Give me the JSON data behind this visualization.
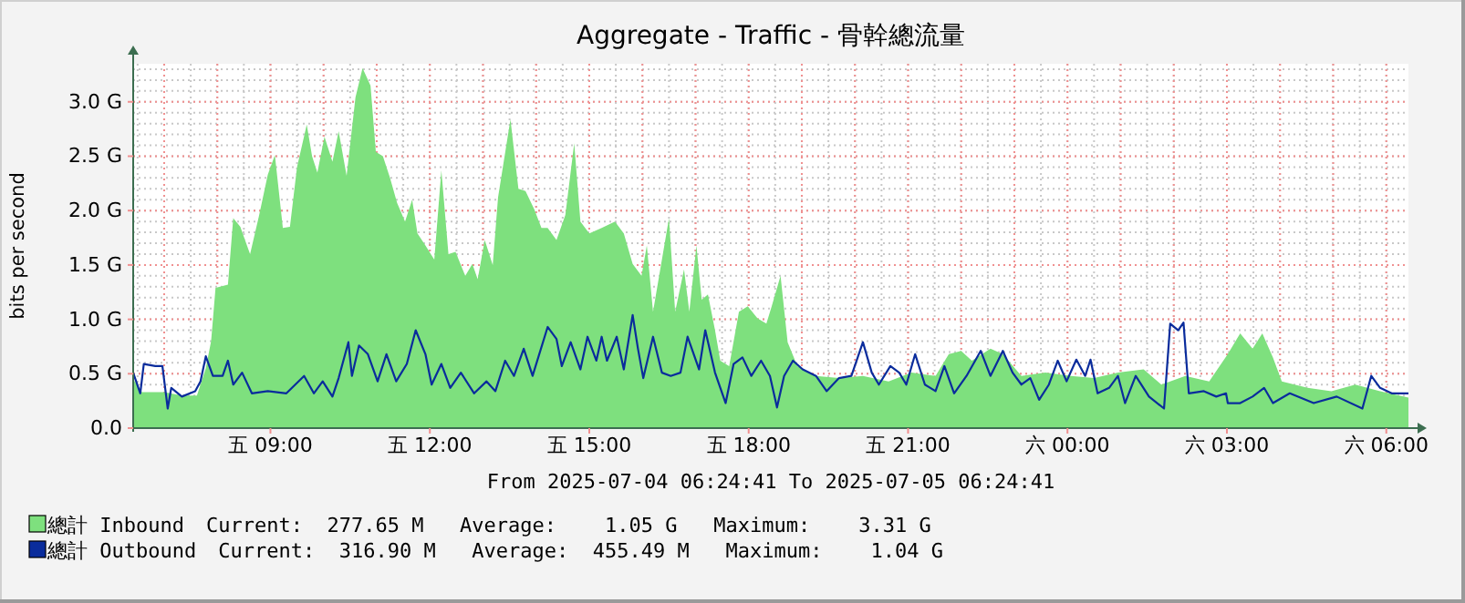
{
  "chart_data": {
    "type": "area",
    "title": "Aggregate - Traffic - 骨幹總流量",
    "ylabel": "bits per second",
    "xlim": [
      "2025-07-04T06:25",
      "2025-07-05T06:25"
    ],
    "ylim": [
      0,
      3.35
    ],
    "xticks": [
      {
        "value": "2025-07-04T09:00",
        "label": "五 09:00"
      },
      {
        "value": "2025-07-04T12:00",
        "label": "五 12:00"
      },
      {
        "value": "2025-07-04T15:00",
        "label": "五 15:00"
      },
      {
        "value": "2025-07-04T18:00",
        "label": "五 18:00"
      },
      {
        "value": "2025-07-04T21:00",
        "label": "五 21:00"
      },
      {
        "value": "2025-07-05T00:00",
        "label": "六 00:00"
      },
      {
        "value": "2025-07-05T03:00",
        "label": "六 03:00"
      },
      {
        "value": "2025-07-05T06:00",
        "label": "六 06:00"
      }
    ],
    "yticks": [
      {
        "value": 0,
        "label": "0.0"
      },
      {
        "value": 0.5,
        "label": "0.5 G"
      },
      {
        "value": 1,
        "label": "1.0 G"
      },
      {
        "value": 1.5,
        "label": "1.5 G"
      },
      {
        "value": 2,
        "label": "2.0 G"
      },
      {
        "value": 2.5,
        "label": "2.5 G"
      },
      {
        "value": 3,
        "label": "3.0 G"
      }
    ],
    "grid": true,
    "legend": "bottom",
    "annotations": [
      "From 2025-07-04 06:24:41 To 2025-07-05 06:24:41",
      "Current:  277.65 M   Average:    1.05 G   Maximum:    3.31 G",
      "Current:  316.90 M   Average:  455.49 M   Maximum:    1.04 G"
    ],
    "series": [
      {
        "name": "總計 Inbound",
        "type": "area",
        "color": "#7ee07e",
        "x": [
          "2025-07-04T06:25",
          "2025-07-04T06:35",
          "2025-07-04T07:00",
          "2025-07-04T07:20",
          "2025-07-04T07:37",
          "2025-07-04T07:47",
          "2025-07-04T07:53",
          "2025-07-04T07:58",
          "2025-07-04T08:12",
          "2025-07-04T08:18",
          "2025-07-04T08:26",
          "2025-07-04T08:37",
          "2025-07-04T08:47",
          "2025-07-04T08:57",
          "2025-07-04T09:05",
          "2025-07-04T09:14",
          "2025-07-04T09:22",
          "2025-07-04T09:30",
          "2025-07-04T09:41",
          "2025-07-04T09:47",
          "2025-07-04T09:53",
          "2025-07-04T10:01",
          "2025-07-04T10:10",
          "2025-07-04T10:17",
          "2025-07-04T10:26",
          "2025-07-04T10:36",
          "2025-07-04T10:44",
          "2025-07-04T10:53",
          "2025-07-04T10:59",
          "2025-07-04T11:07",
          "2025-07-04T11:15",
          "2025-07-04T11:23",
          "2025-07-04T11:32",
          "2025-07-04T11:40",
          "2025-07-04T11:46",
          "2025-07-04T11:55",
          "2025-07-04T12:05",
          "2025-07-04T12:13",
          "2025-07-04T12:21",
          "2025-07-04T12:29",
          "2025-07-04T12:40",
          "2025-07-04T12:48",
          "2025-07-04T12:54",
          "2025-07-04T13:02",
          "2025-07-04T13:11",
          "2025-07-04T13:17",
          "2025-07-04T13:31",
          "2025-07-04T13:40",
          "2025-07-04T13:48",
          "2025-07-04T13:58",
          "2025-07-04T14:06",
          "2025-07-04T14:13",
          "2025-07-04T14:23",
          "2025-07-04T14:33",
          "2025-07-04T14:43",
          "2025-07-04T14:50",
          "2025-07-04T15:00",
          "2025-07-04T15:14",
          "2025-07-04T15:29",
          "2025-07-04T15:39",
          "2025-07-04T15:49",
          "2025-07-04T15:59",
          "2025-07-04T16:05",
          "2025-07-04T16:12",
          "2025-07-04T16:30",
          "2025-07-04T16:37",
          "2025-07-04T16:47",
          "2025-07-04T16:53",
          "2025-07-04T17:01",
          "2025-07-04T17:07",
          "2025-07-04T17:14",
          "2025-07-04T17:22",
          "2025-07-04T17:28",
          "2025-07-04T17:38",
          "2025-07-04T17:49",
          "2025-07-04T17:59",
          "2025-07-04T18:10",
          "2025-07-04T18:20",
          "2025-07-04T18:26",
          "2025-07-04T18:36",
          "2025-07-04T18:44",
          "2025-07-04T18:55",
          "2025-07-04T19:16",
          "2025-07-04T19:42",
          "2025-07-04T20:09",
          "2025-07-04T20:38",
          "2025-07-04T21:04",
          "2025-07-04T21:31",
          "2025-07-04T21:46",
          "2025-07-04T22:00",
          "2025-07-04T22:12",
          "2025-07-04T22:33",
          "2025-07-04T22:47",
          "2025-07-04T23:08",
          "2025-07-04T23:35",
          "2025-07-05T00:04",
          "2025-07-05T00:30",
          "2025-07-05T00:57",
          "2025-07-05T01:26",
          "2025-07-05T01:46",
          "2025-07-05T02:13",
          "2025-07-05T02:40",
          "2025-07-05T03:01",
          "2025-07-05T03:15",
          "2025-07-05T03:29",
          "2025-07-05T03:40",
          "2025-07-05T03:52",
          "2025-07-05T04:02",
          "2025-07-05T04:31",
          "2025-07-05T04:58",
          "2025-07-05T05:25",
          "2025-07-05T05:53",
          "2025-07-05T06:25"
        ],
        "values": [
          0.45,
          0.33,
          0.33,
          0.3,
          0.3,
          0.55,
          0.8,
          1.29,
          1.32,
          1.93,
          1.85,
          1.6,
          1.95,
          2.33,
          2.51,
          1.84,
          1.85,
          2.4,
          2.79,
          2.5,
          2.35,
          2.68,
          2.45,
          2.73,
          2.32,
          3.04,
          3.31,
          3.15,
          2.54,
          2.5,
          2.3,
          2.07,
          1.9,
          2.1,
          1.79,
          1.68,
          1.55,
          2.37,
          1.6,
          1.62,
          1.4,
          1.51,
          1.37,
          1.73,
          1.5,
          2.12,
          2.84,
          2.2,
          2.18,
          2.01,
          1.84,
          1.84,
          1.73,
          1.96,
          2.62,
          1.9,
          1.79,
          1.84,
          1.9,
          1.79,
          1.51,
          1.4,
          1.68,
          1.07,
          1.93,
          1.07,
          1.46,
          1.07,
          1.68,
          1.18,
          1.23,
          0.9,
          0.62,
          0.57,
          1.07,
          1.12,
          1.01,
          0.96,
          1.12,
          1.4,
          0.79,
          0.57,
          0.48,
          0.46,
          0.48,
          0.43,
          0.51,
          0.48,
          0.68,
          0.71,
          0.62,
          0.73,
          0.68,
          0.48,
          0.51,
          0.48,
          0.46,
          0.51,
          0.54,
          0.4,
          0.48,
          0.43,
          0.68,
          0.87,
          0.73,
          0.87,
          0.65,
          0.43,
          0.37,
          0.34,
          0.4,
          0.34,
          0.28
        ]
      },
      {
        "name": "總計 Outbound",
        "type": "line",
        "color": "#0a2c9c",
        "x": [
          "2025-07-04T06:25",
          "2025-07-04T06:33",
          "2025-07-04T06:37",
          "2025-07-04T06:50",
          "2025-07-04T06:58",
          "2025-07-04T07:04",
          "2025-07-04T07:08",
          "2025-07-04T07:20",
          "2025-07-04T07:35",
          "2025-07-04T07:41",
          "2025-07-04T07:47",
          "2025-07-04T07:55",
          "2025-07-04T08:06",
          "2025-07-04T08:12",
          "2025-07-04T08:18",
          "2025-07-04T08:28",
          "2025-07-04T08:39",
          "2025-07-04T08:57",
          "2025-07-04T09:18",
          "2025-07-04T09:38",
          "2025-07-04T09:49",
          "2025-07-04T09:59",
          "2025-07-04T10:10",
          "2025-07-04T10:17",
          "2025-07-04T10:28",
          "2025-07-04T10:32",
          "2025-07-04T10:40",
          "2025-07-04T10:50",
          "2025-07-04T11:01",
          "2025-07-04T11:11",
          "2025-07-04T11:22",
          "2025-07-04T11:34",
          "2025-07-04T11:44",
          "2025-07-04T11:55",
          "2025-07-04T12:02",
          "2025-07-04T12:13",
          "2025-07-04T12:23",
          "2025-07-04T12:35",
          "2025-07-04T12:50",
          "2025-07-04T13:04",
          "2025-07-04T13:14",
          "2025-07-04T13:25",
          "2025-07-04T13:35",
          "2025-07-04T13:46",
          "2025-07-04T13:56",
          "2025-07-04T14:13",
          "2025-07-04T14:23",
          "2025-07-04T14:29",
          "2025-07-04T14:39",
          "2025-07-04T14:50",
          "2025-07-04T14:58",
          "2025-07-04T15:08",
          "2025-07-04T15:14",
          "2025-07-04T15:20",
          "2025-07-04T15:31",
          "2025-07-04T15:39",
          "2025-07-04T15:49",
          "2025-07-04T15:55",
          "2025-07-04T16:01",
          "2025-07-04T16:12",
          "2025-07-04T16:22",
          "2025-07-04T16:32",
          "2025-07-04T16:43",
          "2025-07-04T16:51",
          "2025-07-04T17:04",
          "2025-07-04T17:11",
          "2025-07-04T17:22",
          "2025-07-04T17:28",
          "2025-07-04T17:34",
          "2025-07-04T17:43",
          "2025-07-04T17:53",
          "2025-07-04T18:03",
          "2025-07-04T18:14",
          "2025-07-04T18:24",
          "2025-07-04T18:32",
          "2025-07-04T18:40",
          "2025-07-04T18:50",
          "2025-07-04T19:01",
          "2025-07-04T19:16",
          "2025-07-04T19:28",
          "2025-07-04T19:42",
          "2025-07-04T19:56",
          "2025-07-04T20:09",
          "2025-07-04T20:19",
          "2025-07-04T20:27",
          "2025-07-04T20:40",
          "2025-07-04T20:50",
          "2025-07-04T20:58",
          "2025-07-04T21:08",
          "2025-07-04T21:19",
          "2025-07-04T21:31",
          "2025-07-04T21:41",
          "2025-07-04T21:52",
          "2025-07-04T22:06",
          "2025-07-04T22:22",
          "2025-07-04T22:33",
          "2025-07-04T22:47",
          "2025-07-04T22:58",
          "2025-07-04T23:08",
          "2025-07-04T23:18",
          "2025-07-04T23:28",
          "2025-07-04T23:39",
          "2025-07-04T23:49",
          "2025-07-04T23:59",
          "2025-07-05T00:10",
          "2025-07-05T00:20",
          "2025-07-05T00:26",
          "2025-07-05T00:34",
          "2025-07-05T00:47",
          "2025-07-05T00:57",
          "2025-07-05T01:05",
          "2025-07-05T01:17",
          "2025-07-05T01:32",
          "2025-07-05T01:49",
          "2025-07-05T01:56",
          "2025-07-05T02:05",
          "2025-07-05T02:11",
          "2025-07-05T02:17",
          "2025-07-05T02:34",
          "2025-07-05T02:48",
          "2025-07-05T02:59",
          "2025-07-05T03:01",
          "2025-07-05T03:15",
          "2025-07-05T03:29",
          "2025-07-05T03:42",
          "2025-07-05T03:52",
          "2025-07-05T04:11",
          "2025-07-05T04:38",
          "2025-07-05T05:04",
          "2025-07-05T05:33",
          "2025-07-05T05:43",
          "2025-07-05T05:53",
          "2025-07-05T06:06",
          "2025-07-05T06:25"
        ],
        "values": [
          0.51,
          0.32,
          0.59,
          0.57,
          0.57,
          0.18,
          0.37,
          0.29,
          0.34,
          0.43,
          0.66,
          0.48,
          0.48,
          0.62,
          0.4,
          0.51,
          0.32,
          0.34,
          0.32,
          0.48,
          0.32,
          0.43,
          0.29,
          0.46,
          0.79,
          0.48,
          0.76,
          0.68,
          0.43,
          0.68,
          0.43,
          0.59,
          0.9,
          0.68,
          0.4,
          0.59,
          0.37,
          0.51,
          0.32,
          0.43,
          0.34,
          0.62,
          0.48,
          0.73,
          0.48,
          0.93,
          0.82,
          0.57,
          0.79,
          0.54,
          0.84,
          0.62,
          0.84,
          0.62,
          0.84,
          0.54,
          1.04,
          0.73,
          0.46,
          0.84,
          0.51,
          0.48,
          0.51,
          0.84,
          0.54,
          0.9,
          0.51,
          0.37,
          0.23,
          0.59,
          0.65,
          0.48,
          0.62,
          0.48,
          0.19,
          0.48,
          0.62,
          0.54,
          0.48,
          0.34,
          0.46,
          0.48,
          0.79,
          0.51,
          0.4,
          0.57,
          0.51,
          0.4,
          0.68,
          0.4,
          0.34,
          0.57,
          0.32,
          0.48,
          0.71,
          0.48,
          0.71,
          0.51,
          0.4,
          0.46,
          0.26,
          0.4,
          0.62,
          0.43,
          0.63,
          0.48,
          0.63,
          0.32,
          0.37,
          0.48,
          0.23,
          0.48,
          0.29,
          0.18,
          0.96,
          0.9,
          0.97,
          0.32,
          0.34,
          0.29,
          0.32,
          0.23,
          0.23,
          0.29,
          0.37,
          0.23,
          0.32,
          0.23,
          0.29,
          0.18,
          0.48,
          0.37,
          0.32,
          0.32
        ]
      }
    ]
  }
}
